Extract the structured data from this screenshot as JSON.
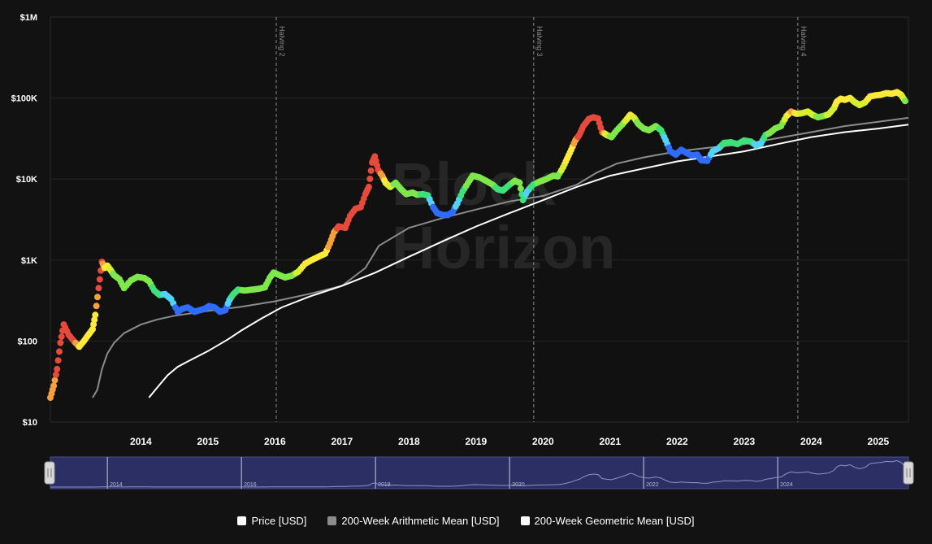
{
  "watermark": [
    "Block",
    "Horizon"
  ],
  "colors": {
    "background": "#121212",
    "plot_background": "#111111",
    "grid": "#2a2a2a",
    "arithmetic_mean": "#8c8c8c",
    "geometric_mean": "#ffffff",
    "navigator_fill": "#2b2f63",
    "navigator_border": "#4a4f8c",
    "price_scale": [
      "#0a20ff",
      "#2f6bff",
      "#4fd4f5",
      "#3ee07a",
      "#7ee84a",
      "#d8ef30",
      "#ffe93a",
      "#f5a03a",
      "#e64a3c"
    ]
  },
  "navigator": {
    "year_labels": [
      "2014",
      "2016",
      "2018",
      "2020",
      "2022",
      "2024"
    ]
  },
  "legend": [
    {
      "label": "Price [USD]",
      "color": "#ffffff"
    },
    {
      "label": "200-Week Arithmetic Mean [USD]",
      "color": "#8c8c8c"
    },
    {
      "label": "200-Week Geometric Mean [USD]",
      "color": "#ffffff"
    }
  ],
  "chart_data": {
    "type": "scatter",
    "y_scale": "log",
    "ylim": [
      10,
      1000000
    ],
    "xlim": [
      2013.15,
      2025.95
    ],
    "y_ticks": [
      {
        "value": 10,
        "label": "$10"
      },
      {
        "value": 100,
        "label": "$100"
      },
      {
        "value": 1000,
        "label": "$1K"
      },
      {
        "value": 10000,
        "label": "$10K"
      },
      {
        "value": 100000,
        "label": "$100K"
      },
      {
        "value": 1000000,
        "label": "$1M"
      }
    ],
    "x_ticks": [
      "2014",
      "2015",
      "2016",
      "2017",
      "2018",
      "2019",
      "2020",
      "2021",
      "2022",
      "2023",
      "2024",
      "2025"
    ],
    "grid": true,
    "annotations": [
      {
        "label": "Halving 2",
        "x": 2016.52
      },
      {
        "label": "Halving 3",
        "x": 2020.36
      },
      {
        "label": "Halving 4",
        "x": 2024.3
      }
    ],
    "series": [
      {
        "name": "Price [USD]",
        "style": "dots",
        "points": [
          [
            2013.15,
            20,
            7
          ],
          [
            2013.2,
            28,
            7
          ],
          [
            2013.25,
            45,
            8
          ],
          [
            2013.3,
            95,
            8
          ],
          [
            2013.35,
            160,
            8
          ],
          [
            2013.42,
            120,
            8
          ],
          [
            2013.5,
            100,
            8
          ],
          [
            2013.58,
            85,
            6
          ],
          [
            2013.65,
            100,
            6
          ],
          [
            2013.72,
            120,
            6
          ],
          [
            2013.78,
            140,
            6
          ],
          [
            2013.82,
            210,
            6
          ],
          [
            2013.87,
            450,
            8
          ],
          [
            2013.92,
            950,
            8
          ],
          [
            2013.96,
            800,
            6
          ],
          [
            2014.0,
            850,
            6
          ],
          [
            2014.05,
            750,
            5
          ],
          [
            2014.1,
            650,
            4
          ],
          [
            2014.18,
            580,
            4
          ],
          [
            2014.25,
            450,
            4
          ],
          [
            2014.35,
            560,
            4
          ],
          [
            2014.45,
            620,
            4
          ],
          [
            2014.55,
            600,
            4
          ],
          [
            2014.62,
            550,
            4
          ],
          [
            2014.7,
            420,
            3
          ],
          [
            2014.78,
            370,
            3
          ],
          [
            2014.86,
            380,
            2
          ],
          [
            2014.95,
            330,
            2
          ],
          [
            2015.05,
            230,
            1
          ],
          [
            2015.12,
            250,
            1
          ],
          [
            2015.2,
            260,
            1
          ],
          [
            2015.3,
            230,
            1
          ],
          [
            2015.38,
            240,
            1
          ],
          [
            2015.45,
            250,
            1
          ],
          [
            2015.52,
            270,
            1
          ],
          [
            2015.6,
            260,
            1
          ],
          [
            2015.68,
            230,
            1
          ],
          [
            2015.76,
            240,
            1
          ],
          [
            2015.82,
            320,
            2
          ],
          [
            2015.88,
            380,
            3
          ],
          [
            2015.95,
            430,
            3
          ],
          [
            2016.05,
            420,
            4
          ],
          [
            2016.15,
            430,
            4
          ],
          [
            2016.25,
            440,
            4
          ],
          [
            2016.35,
            460,
            4
          ],
          [
            2016.42,
            600,
            4
          ],
          [
            2016.48,
            700,
            4
          ],
          [
            2016.55,
            660,
            4
          ],
          [
            2016.65,
            610,
            4
          ],
          [
            2016.75,
            640,
            4
          ],
          [
            2016.85,
            720,
            5
          ],
          [
            2016.95,
            900,
            6
          ],
          [
            2017.05,
            1000,
            6
          ],
          [
            2017.15,
            1100,
            6
          ],
          [
            2017.25,
            1200,
            6
          ],
          [
            2017.32,
            1600,
            7
          ],
          [
            2017.38,
            2200,
            7
          ],
          [
            2017.45,
            2600,
            8
          ],
          [
            2017.55,
            2500,
            8
          ],
          [
            2017.62,
            3500,
            8
          ],
          [
            2017.7,
            4300,
            8
          ],
          [
            2017.78,
            4500,
            8
          ],
          [
            2017.85,
            6500,
            8
          ],
          [
            2017.9,
            8000,
            8
          ],
          [
            2017.95,
            16000,
            8
          ],
          [
            2017.99,
            19000,
            8
          ],
          [
            2018.04,
            13000,
            8
          ],
          [
            2018.1,
            11000,
            7
          ],
          [
            2018.15,
            9000,
            6
          ],
          [
            2018.22,
            8000,
            5
          ],
          [
            2018.3,
            9000,
            4
          ],
          [
            2018.38,
            7500,
            4
          ],
          [
            2018.46,
            6500,
            4
          ],
          [
            2018.55,
            6800,
            4
          ],
          [
            2018.62,
            6400,
            4
          ],
          [
            2018.7,
            6500,
            3
          ],
          [
            2018.78,
            6300,
            3
          ],
          [
            2018.86,
            4500,
            1
          ],
          [
            2018.92,
            3800,
            1
          ],
          [
            2019.0,
            3600,
            1
          ],
          [
            2019.08,
            3600,
            1
          ],
          [
            2019.15,
            3900,
            1
          ],
          [
            2019.22,
            5000,
            2
          ],
          [
            2019.3,
            7000,
            3
          ],
          [
            2019.38,
            9000,
            4
          ],
          [
            2019.45,
            11000,
            4
          ],
          [
            2019.55,
            10500,
            4
          ],
          [
            2019.65,
            9500,
            4
          ],
          [
            2019.75,
            8500,
            4
          ],
          [
            2019.82,
            7500,
            3
          ],
          [
            2019.9,
            7200,
            3
          ],
          [
            2020.0,
            8500,
            3
          ],
          [
            2020.08,
            9500,
            4
          ],
          [
            2020.15,
            9000,
            4
          ],
          [
            2020.2,
            5500,
            3
          ],
          [
            2020.26,
            7000,
            2
          ],
          [
            2020.35,
            8500,
            3
          ],
          [
            2020.45,
            9300,
            4
          ],
          [
            2020.55,
            10000,
            4
          ],
          [
            2020.65,
            11000,
            4
          ],
          [
            2020.72,
            10800,
            4
          ],
          [
            2020.8,
            14000,
            5
          ],
          [
            2020.86,
            18000,
            6
          ],
          [
            2020.92,
            23000,
            6
          ],
          [
            2020.98,
            30000,
            7
          ],
          [
            2021.04,
            35000,
            8
          ],
          [
            2021.1,
            45000,
            8
          ],
          [
            2021.18,
            55000,
            8
          ],
          [
            2021.25,
            58000,
            8
          ],
          [
            2021.32,
            56000,
            8
          ],
          [
            2021.38,
            38000,
            8
          ],
          [
            2021.45,
            35000,
            5
          ],
          [
            2021.52,
            33000,
            4
          ],
          [
            2021.6,
            40000,
            4
          ],
          [
            2021.68,
            47000,
            4
          ],
          [
            2021.75,
            55000,
            5
          ],
          [
            2021.8,
            62000,
            6
          ],
          [
            2021.86,
            57000,
            5
          ],
          [
            2021.92,
            48000,
            4
          ],
          [
            2022.0,
            42000,
            4
          ],
          [
            2022.08,
            40000,
            4
          ],
          [
            2022.18,
            45000,
            4
          ],
          [
            2022.26,
            40000,
            3
          ],
          [
            2022.33,
            30000,
            2
          ],
          [
            2022.4,
            22000,
            1
          ],
          [
            2022.48,
            20000,
            1
          ],
          [
            2022.56,
            23000,
            1
          ],
          [
            2022.64,
            21000,
            1
          ],
          [
            2022.72,
            19500,
            1
          ],
          [
            2022.8,
            20000,
            1
          ],
          [
            2022.86,
            17000,
            1
          ],
          [
            2022.95,
            16800,
            1
          ],
          [
            2023.03,
            22000,
            2
          ],
          [
            2023.12,
            24000,
            2
          ],
          [
            2023.2,
            28000,
            3
          ],
          [
            2023.3,
            28500,
            3
          ],
          [
            2023.4,
            27000,
            3
          ],
          [
            2023.5,
            30000,
            3
          ],
          [
            2023.6,
            29000,
            3
          ],
          [
            2023.68,
            26000,
            2
          ],
          [
            2023.75,
            27500,
            2
          ],
          [
            2023.82,
            35000,
            3
          ],
          [
            2023.88,
            37000,
            4
          ],
          [
            2023.96,
            42000,
            4
          ],
          [
            2024.05,
            45000,
            4
          ],
          [
            2024.13,
            60000,
            5
          ],
          [
            2024.2,
            68000,
            7
          ],
          [
            2024.28,
            64000,
            6
          ],
          [
            2024.36,
            65000,
            5
          ],
          [
            2024.45,
            68000,
            5
          ],
          [
            2024.52,
            62000,
            5
          ],
          [
            2024.6,
            58000,
            4
          ],
          [
            2024.68,
            60000,
            4
          ],
          [
            2024.76,
            63000,
            5
          ],
          [
            2024.84,
            75000,
            5
          ],
          [
            2024.88,
            90000,
            6
          ],
          [
            2024.94,
            98000,
            6
          ],
          [
            2025.0,
            95000,
            6
          ],
          [
            2025.08,
            100000,
            6
          ],
          [
            2025.14,
            90000,
            5
          ],
          [
            2025.22,
            82000,
            5
          ],
          [
            2025.3,
            88000,
            5
          ],
          [
            2025.38,
            105000,
            6
          ],
          [
            2025.46,
            108000,
            6
          ],
          [
            2025.54,
            110000,
            6
          ],
          [
            2025.62,
            115000,
            6
          ],
          [
            2025.7,
            113000,
            6
          ],
          [
            2025.78,
            118000,
            6
          ],
          [
            2025.84,
            110000,
            6
          ],
          [
            2025.9,
            92000,
            4
          ]
        ]
      },
      {
        "name": "200-Week Arithmetic Mean [USD]",
        "style": "line",
        "points": [
          [
            2013.78,
            20
          ],
          [
            2013.85,
            25
          ],
          [
            2013.92,
            45
          ],
          [
            2014.0,
            70
          ],
          [
            2014.1,
            95
          ],
          [
            2014.25,
            125
          ],
          [
            2014.5,
            160
          ],
          [
            2014.75,
            185
          ],
          [
            2015.0,
            205
          ],
          [
            2015.5,
            235
          ],
          [
            2016.0,
            265
          ],
          [
            2016.5,
            310
          ],
          [
            2017.0,
            380
          ],
          [
            2017.5,
            480
          ],
          [
            2017.85,
            800
          ],
          [
            2018.05,
            1500
          ],
          [
            2018.5,
            2500
          ],
          [
            2019.0,
            3300
          ],
          [
            2019.5,
            4200
          ],
          [
            2020.0,
            5300
          ],
          [
            2020.5,
            6200
          ],
          [
            2021.0,
            8500
          ],
          [
            2021.3,
            12000
          ],
          [
            2021.6,
            15500
          ],
          [
            2022.0,
            18500
          ],
          [
            2022.5,
            22000
          ],
          [
            2023.0,
            24500
          ],
          [
            2023.5,
            27000
          ],
          [
            2024.0,
            32000
          ],
          [
            2024.5,
            38000
          ],
          [
            2025.0,
            45000
          ],
          [
            2025.5,
            51000
          ],
          [
            2025.95,
            57000
          ]
        ]
      },
      {
        "name": "200-Week Geometric Mean [USD]",
        "style": "line",
        "points": [
          [
            2014.62,
            20
          ],
          [
            2014.75,
            27
          ],
          [
            2014.9,
            38
          ],
          [
            2015.05,
            48
          ],
          [
            2015.2,
            56
          ],
          [
            2015.5,
            75
          ],
          [
            2015.8,
            105
          ],
          [
            2016.0,
            135
          ],
          [
            2016.3,
            190
          ],
          [
            2016.6,
            260
          ],
          [
            2017.0,
            350
          ],
          [
            2017.5,
            480
          ],
          [
            2018.0,
            700
          ],
          [
            2018.5,
            1100
          ],
          [
            2019.0,
            1700
          ],
          [
            2019.5,
            2600
          ],
          [
            2020.0,
            3800
          ],
          [
            2020.5,
            5500
          ],
          [
            2021.0,
            8000
          ],
          [
            2021.5,
            11000
          ],
          [
            2022.0,
            13500
          ],
          [
            2022.5,
            16500
          ],
          [
            2023.0,
            19000
          ],
          [
            2023.5,
            22000
          ],
          [
            2024.0,
            27000
          ],
          [
            2024.5,
            33000
          ],
          [
            2025.0,
            38000
          ],
          [
            2025.5,
            42000
          ],
          [
            2025.95,
            47000
          ]
        ]
      }
    ]
  }
}
